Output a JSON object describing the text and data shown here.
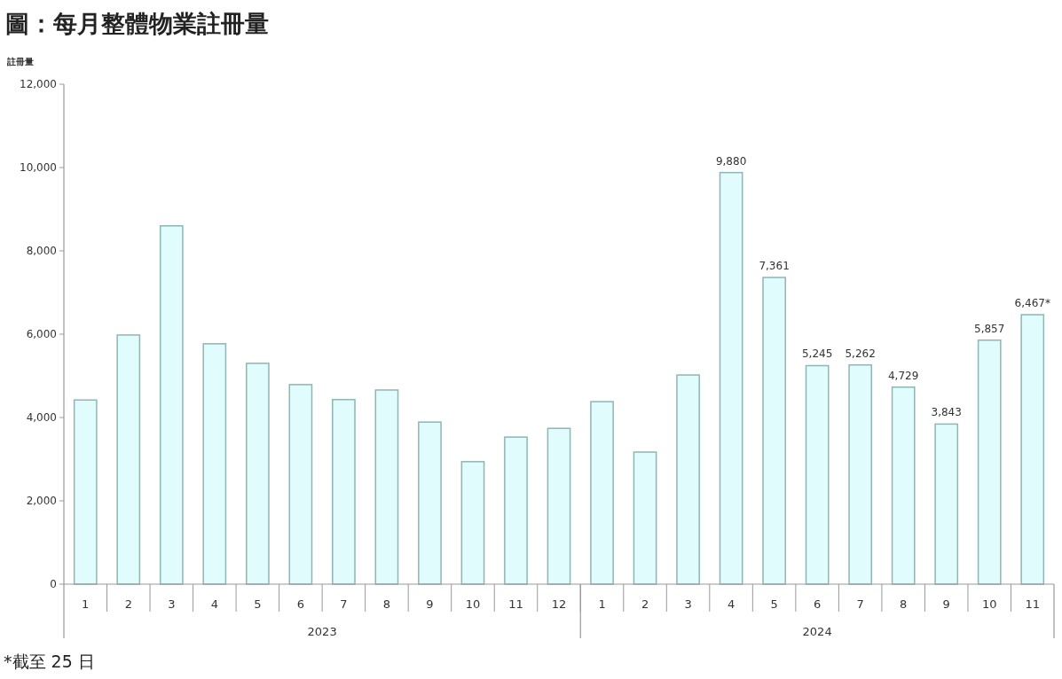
{
  "chart_data": {
    "type": "bar",
    "title": "圖：每月整體物業註冊量",
    "ylabel": "註冊量",
    "categories": [
      "1",
      "2",
      "3",
      "4",
      "5",
      "6",
      "7",
      "8",
      "9",
      "10",
      "11",
      "12",
      "1",
      "2",
      "3",
      "4",
      "5",
      "6",
      "7",
      "8",
      "9",
      "10",
      "11"
    ],
    "values": [
      4420,
      5980,
      8600,
      5770,
      5300,
      4790,
      4430,
      4660,
      3890,
      2940,
      3530,
      3740,
      4380,
      3170,
      5020,
      9880,
      7361,
      5245,
      5262,
      4729,
      3843,
      5857,
      6467
    ],
    "value_labels": [
      null,
      null,
      null,
      null,
      null,
      null,
      null,
      null,
      null,
      null,
      null,
      null,
      null,
      null,
      null,
      "9,880",
      "7,361",
      "5,245",
      "5,262",
      "4,729",
      "3,843",
      "5,857",
      "6,467*"
    ],
    "color": "#e0fcfc",
    "ylim": [
      0,
      12000
    ],
    "yticks": [
      {
        "value": 0,
        "label": "0"
      },
      {
        "value": 2000,
        "label": "2,000"
      },
      {
        "value": 4000,
        "label": "4,000"
      },
      {
        "value": 6000,
        "label": "6,000"
      },
      {
        "value": 8000,
        "label": "8,000"
      },
      {
        "value": 10000,
        "label": "10,000"
      },
      {
        "value": 12000,
        "label": "12,000"
      }
    ],
    "grid": false,
    "legend": false,
    "annotations": [
      "2023",
      "2024",
      "*截至 25 日"
    ]
  }
}
